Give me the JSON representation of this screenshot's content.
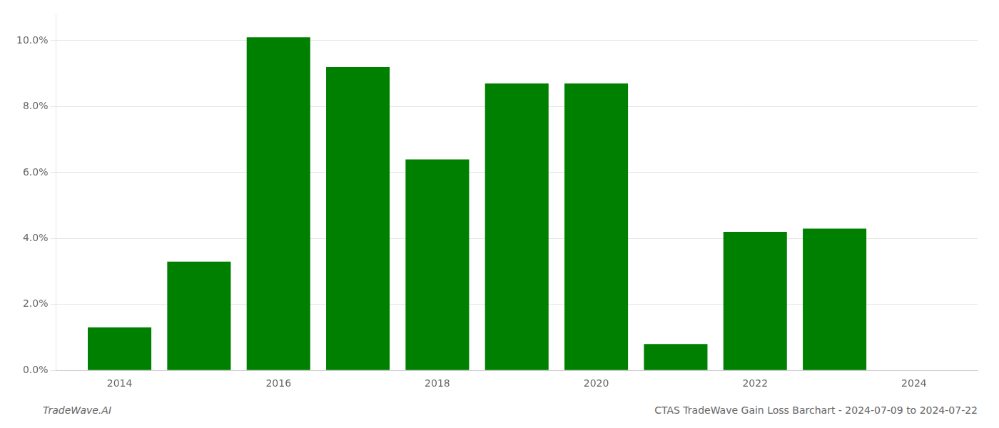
{
  "chart_data": {
    "type": "bar",
    "x": [
      2014,
      2015,
      2016,
      2017,
      2018,
      2019,
      2020,
      2021,
      2022,
      2023
    ],
    "values": [
      0.013,
      0.033,
      0.101,
      0.092,
      0.064,
      0.087,
      0.087,
      0.008,
      0.042,
      0.043
    ],
    "color": "#008000",
    "xlim": [
      2013.2,
      2024.8
    ],
    "xticks": [
      2014,
      2016,
      2018,
      2020,
      2022,
      2024
    ],
    "ylim": [
      0,
      0.108
    ],
    "yticks": [
      {
        "value": 0.0,
        "label": "0.0%"
      },
      {
        "value": 0.02,
        "label": "2.0%"
      },
      {
        "value": 0.04,
        "label": "4.0%"
      },
      {
        "value": 0.06,
        "label": "6.0%"
      },
      {
        "value": 0.08,
        "label": "8.0%"
      },
      {
        "value": 0.1,
        "label": "10.0%"
      }
    ],
    "grid": "y",
    "annotations": [
      "TradeWave.AI",
      "CTAS TradeWave Gain Loss Barchart - 2024-07-09 to 2024-07-22"
    ]
  }
}
